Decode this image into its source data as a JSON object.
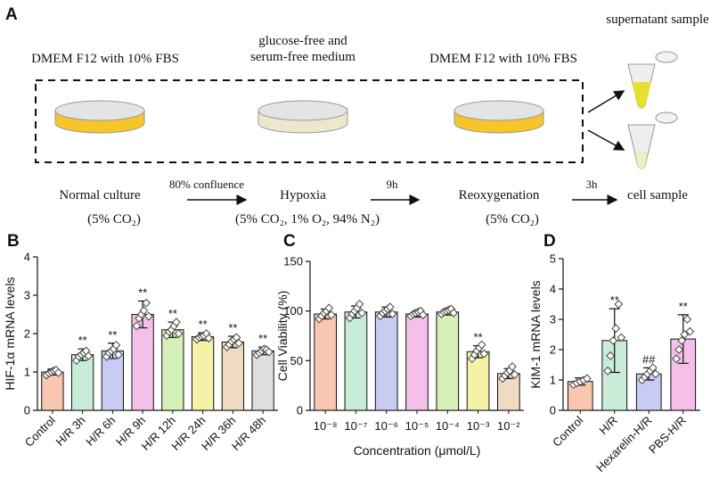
{
  "schematic": {
    "label": "A",
    "steps": [
      {
        "medium": [
          "DMEM F12 with 10% FBS"
        ],
        "name": "Normal culture",
        "condition": "(5% CO₂)"
      },
      {
        "medium": [
          "glucose-free and",
          "serum-free medium"
        ],
        "name": "Hypoxia",
        "condition": "(5% CO₂, 1% O₂, 94% N₂)"
      },
      {
        "medium": [
          "DMEM F12 with 10% FBS"
        ],
        "name": "Reoxygenation",
        "condition": "(5% CO₂)"
      }
    ],
    "transitions": [
      "80% confluence",
      "9h",
      "3h"
    ],
    "outputs": [
      "supernatant sample",
      "cell sample"
    ]
  },
  "chart_data": [
    {
      "type": "bar",
      "panel": "B",
      "y_label": "HIF-1α mRNA levels",
      "categories": [
        "Control",
        "H/R 3h",
        "H/R 6h",
        "H/R 9h",
        "H/R 12h",
        "H/R 24h",
        "H/R 36h",
        "H/R 48h"
      ],
      "values": [
        1.0,
        1.45,
        1.55,
        2.5,
        2.1,
        1.92,
        1.78,
        1.55
      ],
      "errors": [
        0.08,
        0.15,
        0.2,
        0.35,
        0.2,
        0.1,
        0.15,
        0.1
      ],
      "points": [
        [
          0.92,
          0.97,
          1.0,
          1.03,
          1.05,
          0.98
        ],
        [
          1.3,
          1.4,
          1.45,
          1.5,
          1.55,
          1.42
        ],
        [
          1.4,
          1.5,
          1.55,
          1.6,
          1.7,
          1.45
        ],
        [
          2.2,
          2.4,
          2.5,
          2.6,
          2.8,
          2.45
        ],
        [
          1.95,
          2.05,
          2.1,
          2.2,
          2.3,
          2.0
        ],
        [
          1.85,
          1.9,
          1.93,
          1.95,
          2.0,
          1.88
        ],
        [
          1.65,
          1.72,
          1.8,
          1.85,
          1.9,
          1.75
        ],
        [
          1.45,
          1.5,
          1.55,
          1.6,
          1.58,
          1.52
        ]
      ],
      "annotations": [
        null,
        "**",
        "**",
        "**",
        "**",
        "**",
        "**",
        "**"
      ],
      "colors": [
        "#f9c6b1",
        "#c8ecd8",
        "#c8ccf2",
        "#f4bfe9",
        "#d5f1b9",
        "#f6f1a8",
        "#f1dac2",
        "#dedede"
      ],
      "ylim": [
        0,
        4
      ],
      "yticks": [
        0,
        1,
        2,
        3,
        4
      ]
    },
    {
      "type": "bar",
      "panel": "C",
      "y_label": "Cell Viability (%)",
      "x_label": "Concentration (μmol/L)",
      "categories": [
        "10⁻⁸",
        "10⁻⁷",
        "10⁻⁶",
        "10⁻⁵",
        "10⁻⁴",
        "10⁻³",
        "10⁻²"
      ],
      "values": [
        97,
        99,
        99,
        97,
        99,
        59,
        37
      ],
      "errors": [
        5,
        6,
        5,
        3,
        3,
        6,
        5
      ],
      "points": [
        [
          92,
          95,
          98,
          100,
          103,
          96
        ],
        [
          93,
          97,
          100,
          103,
          107,
          98
        ],
        [
          95,
          98,
          100,
          102,
          104,
          97
        ],
        [
          95,
          97,
          98,
          99,
          100,
          96
        ],
        [
          97,
          99,
          100,
          101,
          102,
          98
        ],
        [
          52,
          56,
          60,
          63,
          66,
          57
        ],
        [
          32,
          35,
          38,
          40,
          44,
          36
        ]
      ],
      "annotations": [
        null,
        null,
        null,
        null,
        null,
        "**",
        null
      ],
      "colors": [
        "#f9c6b1",
        "#c8ecd8",
        "#c8ccf2",
        "#f4bfe9",
        "#d5f1b9",
        "#f6f1a8",
        "#f1dac2"
      ],
      "ylim": [
        0,
        150
      ],
      "yticks": [
        0,
        50,
        100,
        150
      ]
    },
    {
      "type": "bar",
      "panel": "D",
      "y_label": "KIM-1 mRNA levels",
      "categories": [
        "Control",
        "H/R",
        "Hexarelin-H/R",
        "PBS-H/R"
      ],
      "values": [
        0.95,
        2.3,
        1.2,
        2.35
      ],
      "errors": [
        0.12,
        1.05,
        0.2,
        0.8
      ],
      "points": [
        [
          0.85,
          0.9,
          0.95,
          1.0,
          1.05
        ],
        [
          1.3,
          1.8,
          2.3,
          2.7,
          3.5,
          2.4
        ],
        [
          1.0,
          1.1,
          1.2,
          1.3,
          1.4,
          1.2
        ],
        [
          1.7,
          2.0,
          2.3,
          2.5,
          3.0,
          2.6
        ]
      ],
      "annotations": [
        null,
        "**",
        "##",
        "**"
      ],
      "colors": [
        "#f9c6b1",
        "#c8ecd8",
        "#c8ccf2",
        "#f4bfe9"
      ],
      "ylim": [
        0,
        5
      ],
      "yticks": [
        0,
        1,
        2,
        3,
        4,
        5
      ]
    }
  ]
}
